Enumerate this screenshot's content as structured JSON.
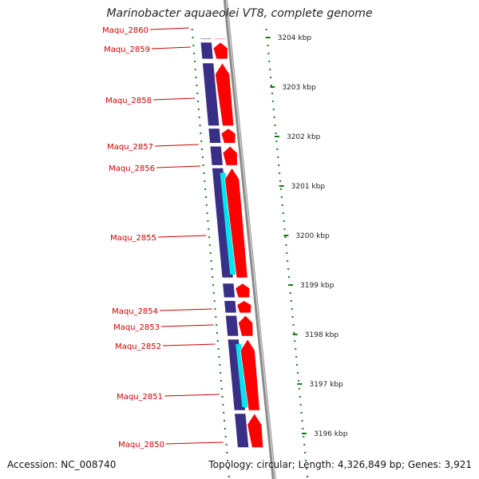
{
  "title": "Marinobacter aquaeolei VT8, complete genome",
  "footer": {
    "accession": "Accession: NC_008740",
    "stats": "Topology: circular; Length: 4,326,849 bp; Genes: 3,921"
  },
  "colors": {
    "plus_gene": "#ff0000",
    "minus_gene": "#3a2f86",
    "plus_cds": "#00e5ee",
    "label_text": "#cc0000",
    "tick": "#1a7a1a",
    "backbone": "#888888"
  },
  "chart_data": {
    "type": "genome-map",
    "units": "kbp",
    "scale_labels": [
      "3204 kbp",
      "3203 kbp",
      "3202 kbp",
      "3201 kbp",
      "3200 kbp",
      "3199 kbp",
      "3198 kbp",
      "3197 kbp",
      "3196 kbp"
    ],
    "scale_values": [
      3204,
      3203,
      3202,
      3201,
      3200,
      3199,
      3198,
      3197,
      3196
    ],
    "genes": [
      {
        "name": "Maqu_2860",
        "start": 3204.0,
        "end": 3203.95
      },
      {
        "name": "Maqu_2859",
        "start": 3203.92,
        "end": 3203.55
      },
      {
        "name": "Maqu_2858",
        "start": 3203.5,
        "end": 3202.2
      },
      {
        "name": "Maqu_2857",
        "start": 3202.18,
        "end": 3201.85
      },
      {
        "name": "Maqu_2856",
        "start": 3201.82,
        "end": 3201.4
      },
      {
        "name": "Maqu_2855",
        "start": 3201.38,
        "end": 3199.13
      },
      {
        "name": "Maqu_2854",
        "start": 3199.05,
        "end": 3198.73
      },
      {
        "name": "Maqu_2853",
        "start": 3198.7,
        "end": 3198.42
      },
      {
        "name": "Maqu_2852",
        "start": 3198.4,
        "end": 3197.95
      },
      {
        "name": "Maqu_2851",
        "start": 3197.92,
        "end": 3196.45
      },
      {
        "name": "Maqu_2850",
        "start": 3196.42,
        "end": 3195.7
      }
    ],
    "gene_labels": [
      "Maqu_2860",
      "Maqu_2859",
      "Maqu_2858",
      "Maqu_2857",
      "Maqu_2856",
      "Maqu_2855",
      "Maqu_2854",
      "Maqu_2853",
      "Maqu_2852",
      "Maqu_2851",
      "Maqu_2850"
    ]
  }
}
